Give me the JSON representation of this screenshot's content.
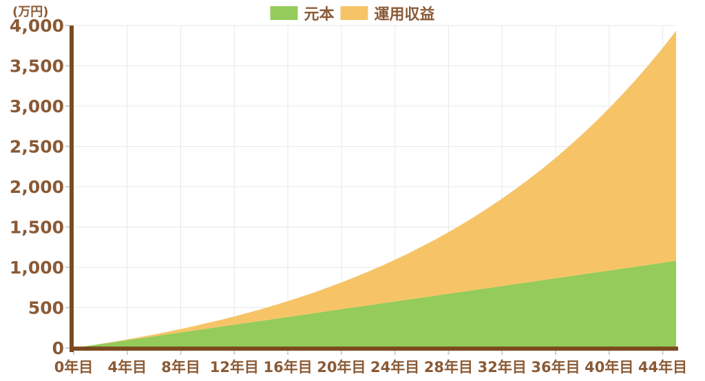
{
  "chart": {
    "unit_label": "(万円)"
  },
  "style": {
    "background": "#ffffff",
    "text_color": "#8a5a35",
    "axis_color": "#7b4a21",
    "grid_color": "#e8e8e8",
    "tick_color": "#cccccc"
  },
  "chart_data": {
    "type": "area",
    "stacked": true,
    "title": "",
    "xlabel": "",
    "ylabel": "(万円)",
    "legend_position": "top",
    "grid": true,
    "xlim": [
      0,
      45
    ],
    "ylim": [
      0,
      4000
    ],
    "categories": [
      0,
      1,
      2,
      3,
      4,
      5,
      6,
      7,
      8,
      9,
      10,
      11,
      12,
      13,
      14,
      15,
      16,
      17,
      18,
      19,
      20,
      21,
      22,
      23,
      24,
      25,
      26,
      27,
      28,
      29,
      30,
      31,
      32,
      33,
      34,
      35,
      36,
      37,
      38,
      39,
      40,
      41,
      42,
      43,
      44,
      45
    ],
    "series": [
      {
        "name": "元本",
        "color": "#94cb5a",
        "values": [
          0,
          24,
          48,
          72,
          96,
          120,
          144,
          168,
          192,
          216,
          240,
          264,
          288,
          312,
          336,
          360,
          384,
          408,
          432,
          456,
          480,
          504,
          528,
          552,
          576,
          600,
          624,
          648,
          672,
          696,
          720,
          744,
          768,
          792,
          816,
          840,
          864,
          888,
          912,
          936,
          960,
          984,
          1008,
          1032,
          1056,
          1080
        ]
      },
      {
        "name": "運用収益",
        "color": "#f6c467",
        "values": [
          0,
          1,
          2,
          5,
          10,
          16,
          23,
          32,
          43,
          55,
          69,
          85,
          103,
          123,
          145,
          170,
          197,
          227,
          259,
          295,
          333,
          374,
          418,
          466,
          518,
          573,
          633,
          696,
          764,
          837,
          914,
          997,
          1084,
          1178,
          1277,
          1382,
          1494,
          1613,
          1739,
          1872,
          2014,
          2163,
          2321,
          2489,
          2666,
          2853
        ]
      }
    ],
    "y_tick_values": [
      0,
      500,
      1000,
      1500,
      2000,
      2500,
      3000,
      3500,
      4000
    ],
    "y_tick_labels": [
      "0",
      "500",
      "1,000",
      "1,500",
      "2,000",
      "2,500",
      "3,000",
      "3,500",
      "4,000"
    ],
    "x_tick_values": [
      0,
      4,
      8,
      12,
      16,
      20,
      24,
      28,
      32,
      36,
      40,
      44
    ],
    "x_tick_labels": [
      "0年目",
      "4年目",
      "8年目",
      "12年目",
      "16年目",
      "20年目",
      "24年目",
      "28年目",
      "32年目",
      "36年目",
      "40年目",
      "44年目"
    ]
  }
}
